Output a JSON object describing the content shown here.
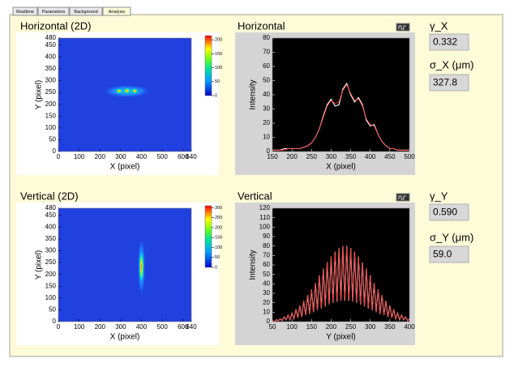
{
  "tabs": [
    "Realtime",
    "Parameters",
    "Background",
    "Analysis"
  ],
  "chart_data": [
    {
      "type": "heatmap",
      "title": "Horizontal (2D)",
      "xlabel": "X (pixel)",
      "ylabel": "Y (pixel)",
      "xlim": [
        0,
        640
      ],
      "xticks": [
        0,
        100,
        200,
        300,
        400,
        500,
        600,
        640
      ],
      "ylim": [
        0,
        480
      ],
      "yticks": [
        0,
        50,
        100,
        150,
        200,
        250,
        300,
        350,
        400,
        450,
        480
      ],
      "clim": [
        0,
        215
      ],
      "cticks": [
        0,
        50,
        100,
        150,
        200
      ]
    },
    {
      "type": "line",
      "title": "Horizontal",
      "xlabel": "X (pixel)",
      "ylabel": "Intensity",
      "xlim": [
        150,
        500
      ],
      "xticks": [
        150,
        200,
        250,
        300,
        350,
        400,
        450,
        500
      ],
      "ylim": [
        0,
        80
      ],
      "yticks": [
        0,
        10,
        20,
        30,
        40,
        50,
        60,
        70,
        80
      ],
      "x": [
        150,
        160,
        170,
        180,
        190,
        200,
        210,
        220,
        230,
        240,
        250,
        260,
        270,
        280,
        290,
        300,
        310,
        320,
        330,
        340,
        350,
        360,
        370,
        380,
        390,
        400,
        410,
        420,
        430,
        440,
        450,
        460,
        470,
        480,
        490,
        500
      ],
      "series": [
        {
          "color": "#ffffff",
          "values": [
            1,
            1,
            1,
            2,
            2,
            2,
            2,
            2,
            3,
            4,
            6,
            10,
            16,
            25,
            33,
            37,
            32,
            33,
            44,
            48,
            40,
            35,
            38,
            33,
            22,
            18,
            19,
            12,
            7,
            4,
            2,
            2,
            1,
            1,
            1,
            1
          ]
        },
        {
          "color": "#ff3030",
          "values": [
            1,
            1,
            1,
            1,
            2,
            2,
            2,
            2,
            3,
            4,
            6,
            10,
            16,
            24,
            32,
            36,
            34,
            35,
            43,
            47,
            41,
            36,
            37,
            32,
            23,
            19,
            18,
            12,
            7,
            4,
            2,
            2,
            1,
            1,
            1,
            1
          ]
        }
      ]
    },
    {
      "type": "heatmap",
      "title": "Vertical (2D)",
      "xlabel": "X (pixel)",
      "ylabel": "Y (pixel)",
      "xlim": [
        0,
        640
      ],
      "xticks": [
        0,
        100,
        200,
        300,
        400,
        500,
        600,
        640
      ],
      "ylim": [
        0,
        480
      ],
      "yticks": [
        0,
        50,
        100,
        150,
        200,
        250,
        300,
        350,
        400,
        450,
        480
      ],
      "clim": [
        0,
        310
      ],
      "cticks": [
        0,
        50,
        100,
        150,
        200,
        250,
        300
      ]
    },
    {
      "type": "line",
      "title": "Vertical",
      "xlabel": "Y (pixel)",
      "ylabel": "Intensity",
      "xlim": [
        50,
        400
      ],
      "xticks": [
        50,
        100,
        150,
        200,
        250,
        300,
        350,
        400
      ],
      "ylim": [
        0,
        120
      ],
      "yticks": [
        0,
        10,
        20,
        30,
        40,
        50,
        60,
        70,
        80,
        90,
        100,
        110,
        120
      ],
      "x": [
        50,
        55,
        60,
        65,
        70,
        75,
        80,
        85,
        90,
        95,
        100,
        105,
        110,
        115,
        120,
        125,
        130,
        135,
        140,
        145,
        150,
        155,
        160,
        165,
        170,
        175,
        180,
        185,
        190,
        195,
        200,
        205,
        210,
        215,
        220,
        225,
        230,
        235,
        240,
        245,
        250,
        255,
        260,
        265,
        270,
        275,
        280,
        285,
        290,
        295,
        300,
        305,
        310,
        315,
        320,
        325,
        330,
        335,
        340,
        345,
        350,
        355,
        360,
        365,
        370,
        375,
        380,
        385,
        390,
        395,
        400
      ],
      "series": [
        {
          "color": "#ffffff",
          "values": [
            1,
            0,
            2,
            1,
            3,
            1,
            5,
            2,
            7,
            2,
            9,
            3,
            13,
            4,
            17,
            5,
            22,
            7,
            28,
            8,
            34,
            10,
            41,
            12,
            49,
            14,
            56,
            16,
            63,
            18,
            69,
            20,
            74,
            21,
            78,
            22,
            80,
            22,
            80,
            22,
            78,
            21,
            74,
            20,
            69,
            18,
            63,
            16,
            56,
            14,
            49,
            12,
            41,
            10,
            34,
            8,
            28,
            7,
            22,
            5,
            17,
            4,
            13,
            3,
            9,
            2,
            7,
            2,
            5,
            1,
            3
          ]
        },
        {
          "color": "#ff3030",
          "values": [
            1,
            0,
            2,
            1,
            3,
            1,
            5,
            2,
            7,
            2,
            9,
            3,
            13,
            4,
            17,
            5,
            22,
            7,
            28,
            8,
            34,
            10,
            41,
            12,
            49,
            14,
            56,
            16,
            63,
            18,
            69,
            20,
            74,
            21,
            78,
            22,
            80,
            22,
            80,
            22,
            78,
            21,
            74,
            20,
            69,
            18,
            63,
            16,
            56,
            14,
            49,
            12,
            41,
            10,
            34,
            8,
            28,
            7,
            22,
            5,
            17,
            4,
            13,
            3,
            9,
            2,
            7,
            2,
            5,
            1,
            3
          ]
        }
      ]
    }
  ],
  "readouts": [
    {
      "label": "γ_X",
      "value": "0.332"
    },
    {
      "label": "σ_X (μm)",
      "value": "327.8"
    },
    {
      "label": "γ_Y",
      "value": "0.590"
    },
    {
      "label": "σ_Y (μm)",
      "value": "59.0"
    }
  ]
}
